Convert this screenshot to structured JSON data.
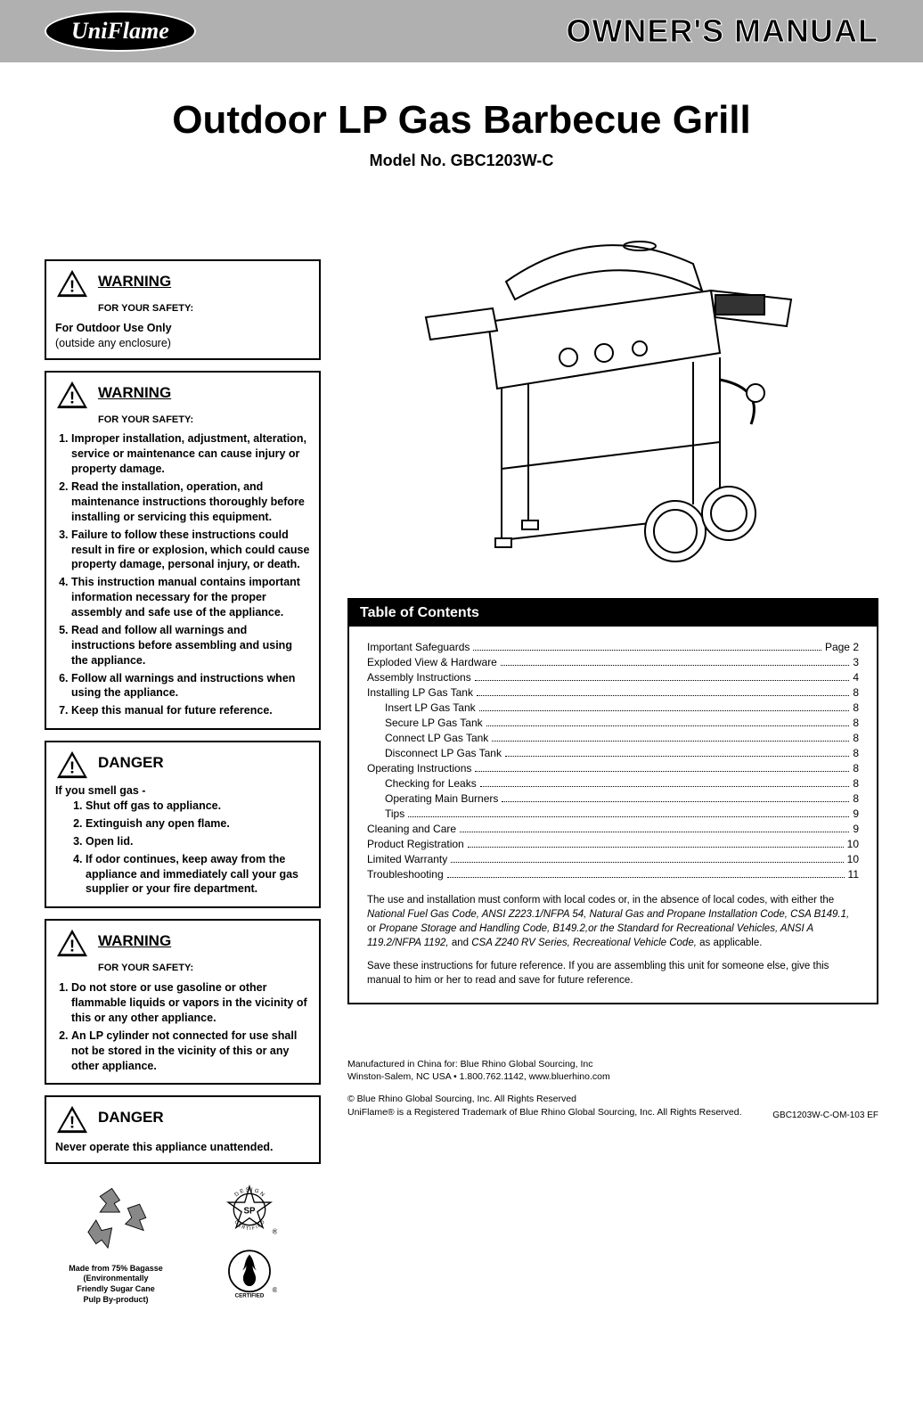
{
  "header": {
    "brand": "UniFlame",
    "manual_title": "OWNER'S MANUAL"
  },
  "product": {
    "title": "Outdoor LP Gas Barbecue Grill",
    "model": "Model No. GBC1203W-C"
  },
  "warnings": [
    {
      "title": "WARNING",
      "subtitle": "FOR YOUR SAFETY:",
      "lead_bold": "For Outdoor Use Only",
      "lead_plain": "(outside any enclosure)"
    },
    {
      "title": "WARNING",
      "subtitle": "FOR YOUR SAFETY:",
      "items": [
        "Improper installation, adjustment, alteration, service or maintenance can cause injury or property damage.",
        "Read the installation, operation, and maintenance instructions thoroughly before installing or servicing this equipment.",
        "Failure to follow these instructions could result in fire or explosion, which could cause property damage, personal injury, or death.",
        "This instruction manual contains important information necessary for the proper assembly and safe use of the appliance.",
        "Read and follow all warnings and instructions before assembling and using the appliance.",
        "Follow all warnings and instructions when using the appliance.",
        "Keep this manual for future reference."
      ]
    },
    {
      "title": "DANGER",
      "lead_bold": "If you smell gas -",
      "items": [
        "Shut off gas to appliance.",
        "Extinguish any open flame.",
        "Open lid.",
        "If odor continues, keep away from the appliance and immediately call your gas supplier or your fire department."
      ]
    },
    {
      "title": "WARNING",
      "subtitle": "FOR YOUR SAFETY:",
      "items": [
        "Do not store or use gasoline or other flammable liquids or vapors in the vicinity of this or any other appliance.",
        "An LP cylinder not connected for use shall not be stored in the vicinity of this or any other appliance."
      ]
    },
    {
      "title": "DANGER",
      "lead_bold": "Never operate this appliance unattended."
    }
  ],
  "eco": {
    "line1": "Made from 75% Bagasse",
    "line2": "(Environmentally",
    "line3": "Friendly Sugar Cane",
    "line4": "Pulp By-product)"
  },
  "cert": {
    "design_label": "DESIGN CERTIFIED",
    "flame_label": "CERTIFIED"
  },
  "toc": {
    "header": "Table of Contents",
    "rows": [
      {
        "label": "Important Safeguards",
        "page": "Page 2",
        "indent": false
      },
      {
        "label": "Exploded View & Hardware",
        "page": "3",
        "indent": false
      },
      {
        "label": "Assembly Instructions",
        "page": "4",
        "indent": false
      },
      {
        "label": "Installing LP Gas Tank",
        "page": "8",
        "indent": false
      },
      {
        "label": "Insert LP Gas Tank",
        "page": "8",
        "indent": true
      },
      {
        "label": "Secure LP Gas Tank",
        "page": "8",
        "indent": true
      },
      {
        "label": "Connect LP Gas Tank",
        "page": "8",
        "indent": true
      },
      {
        "label": "Disconnect LP Gas Tank",
        "page": "8",
        "indent": true
      },
      {
        "label": "Operating Instructions",
        "page": "8",
        "indent": false
      },
      {
        "label": "Checking for Leaks",
        "page": "8",
        "indent": true
      },
      {
        "label": "Operating Main Burners",
        "page": "8",
        "indent": true
      },
      {
        "label": "Tips",
        "page": "9",
        "indent": true
      },
      {
        "label": "Cleaning and Care",
        "page": "9",
        "indent": false
      },
      {
        "label": "Product Registration",
        "page": "10",
        "indent": false
      },
      {
        "label": "Limited Warranty",
        "page": "10",
        "indent": false
      },
      {
        "label": "Troubleshooting",
        "page": "11",
        "indent": false
      }
    ],
    "note1_a": "The use and installation must conform with local codes or, in the absence of local codes, with either the ",
    "note1_i1": "National Fuel Gas Code, ANSI Z223.1/NFPA 54, Natural Gas and Propane Installation Code, CSA B149.1,",
    "note1_b": " or ",
    "note1_i2": "Propane Storage and Handling Code, B149.2,or the Standard for Recreational Vehicles, ANSI A 119.2/NFPA 1192,",
    "note1_c": " and ",
    "note1_i3": "CSA Z240 RV Series, Recreational Vehicle Code,",
    "note1_d": " as applicable.",
    "note2": "Save these instructions for future reference.  If you are assembling this unit for someone else,  give this manual to him or her to read and save for future reference."
  },
  "footer": {
    "mfg1": "Manufactured in China for: Blue Rhino Global Sourcing, Inc",
    "mfg2": "Winston-Salem, NC USA • 1.800.762.1142, www.bluerhino.com",
    "copy1": "© Blue Rhino Global Sourcing, Inc. All Rights Reserved",
    "copy2": "UniFlame® is a Registered Trademark of Blue Rhino Global Sourcing, Inc. All Rights Reserved.",
    "doccode": "GBC1203W-C-OM-103 EF"
  },
  "colors": {
    "header_bg": "#b0b0b0",
    "black": "#000000",
    "white": "#ffffff"
  }
}
